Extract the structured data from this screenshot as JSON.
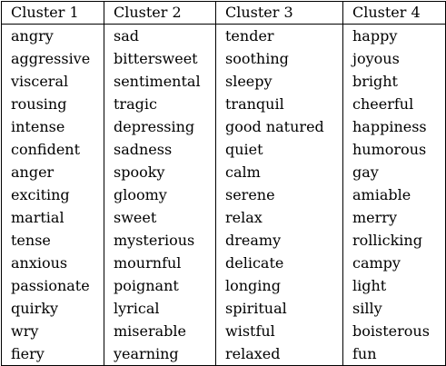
{
  "table": {
    "headers": [
      "Cluster 1",
      "Cluster 2",
      "Cluster 3",
      "Cluster 4"
    ],
    "rows": [
      [
        "angry",
        "sad",
        "tender",
        "happy"
      ],
      [
        "aggressive",
        "bittersweet",
        "soothing",
        "joyous"
      ],
      [
        "visceral",
        "sentimental",
        "sleepy",
        "bright"
      ],
      [
        "rousing",
        "tragic",
        "tranquil",
        "cheerful"
      ],
      [
        "intense",
        "depressing",
        "good natured",
        "happiness"
      ],
      [
        "confident",
        "sadness",
        "quiet",
        "humorous"
      ],
      [
        "anger",
        "spooky",
        "calm",
        "gay"
      ],
      [
        "exciting",
        "gloomy",
        "serene",
        "amiable"
      ],
      [
        "martial",
        "sweet",
        "relax",
        "merry"
      ],
      [
        "tense",
        "mysterious",
        "dreamy",
        "rollicking"
      ],
      [
        "anxious",
        "mournful",
        "delicate",
        "campy"
      ],
      [
        "passionate",
        "poignant",
        "longing",
        "light"
      ],
      [
        "quirky",
        "lyrical",
        "spiritual",
        "silly"
      ],
      [
        "wry",
        "miserable",
        "wistful",
        "boisterous"
      ],
      [
        "fiery",
        "yearning",
        "relaxed",
        "fun"
      ]
    ]
  }
}
